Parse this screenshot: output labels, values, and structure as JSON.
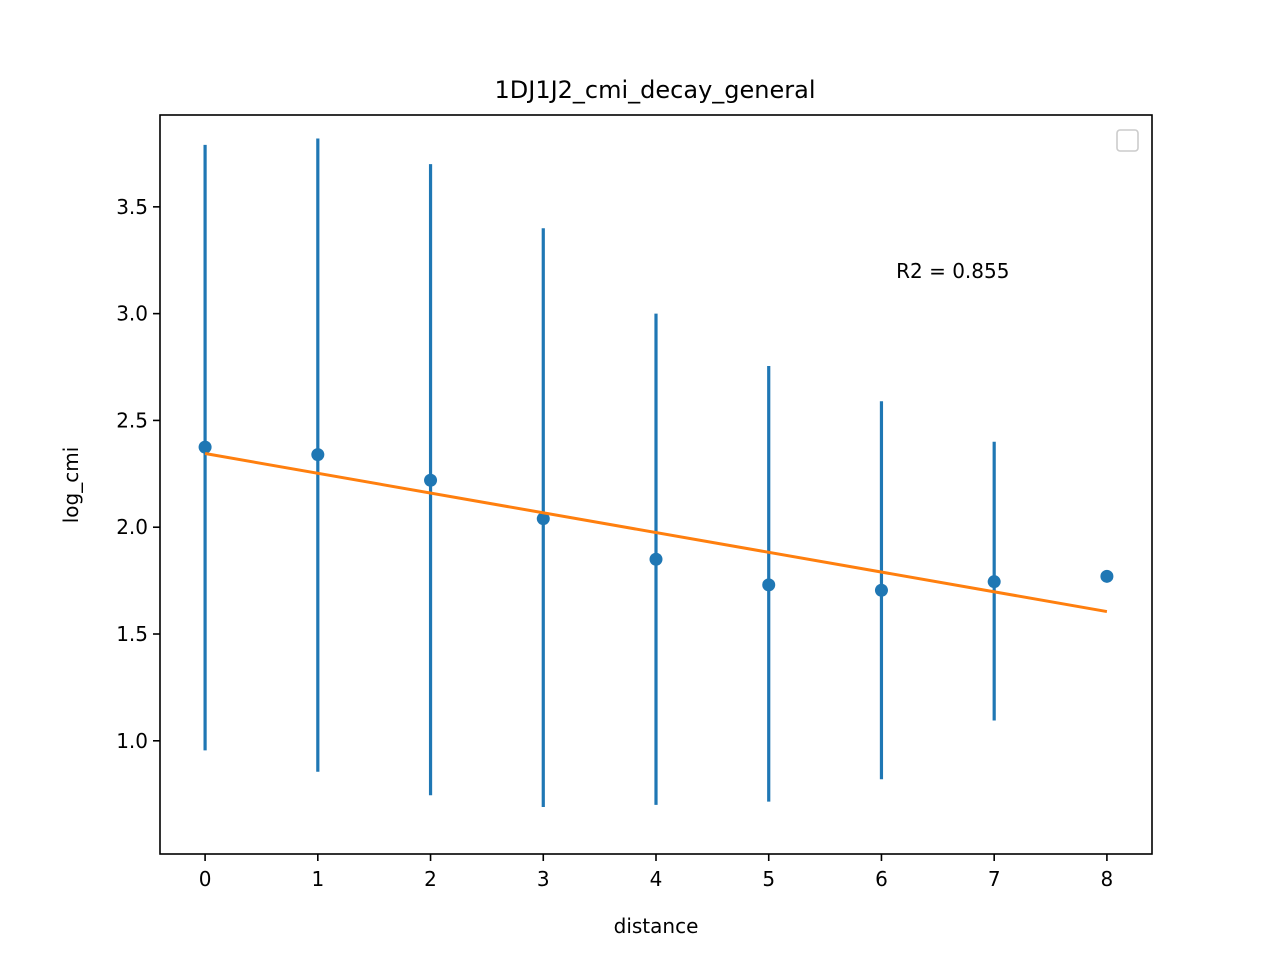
{
  "chart_data": {
    "type": "scatter",
    "title": "1DJ1J2_cmi_decay_general",
    "xlabel": "distance",
    "ylabel": "log_cmi",
    "xlim": [
      -0.4,
      8.4
    ],
    "ylim": [
      0.47,
      3.93
    ],
    "x_ticks": [
      0,
      1,
      2,
      3,
      4,
      5,
      6,
      7,
      8
    ],
    "y_ticks": [
      1.0,
      1.5,
      2.0,
      2.5,
      3.0,
      3.5
    ],
    "y_tick_labels": [
      "1.0",
      "1.5",
      "2.0",
      "2.5",
      "3.0",
      "3.5"
    ],
    "grid": false,
    "legend": {
      "placement": "top-right",
      "entries": []
    },
    "annotation": {
      "text": "R2 = 0.855",
      "x": 6.13,
      "y": 3.2
    },
    "series": [
      {
        "kind": "errorbar",
        "color": "#1f77b4",
        "x": [
          0,
          1,
          2,
          3,
          4,
          5,
          6,
          7,
          8
        ],
        "y": [
          2.375,
          2.34,
          2.22,
          2.04,
          1.85,
          1.73,
          1.705,
          1.745,
          1.77
        ],
        "yerr_low": [
          0.955,
          0.855,
          0.745,
          0.69,
          0.7,
          0.715,
          0.82,
          1.095,
          1.77
        ],
        "yerr_high": [
          3.79,
          3.82,
          3.7,
          3.4,
          3.0,
          2.755,
          2.59,
          2.4,
          1.77
        ]
      },
      {
        "kind": "line",
        "color": "#ff7f0e",
        "x": [
          0,
          8
        ],
        "y": [
          2.345,
          1.605
        ]
      }
    ]
  }
}
